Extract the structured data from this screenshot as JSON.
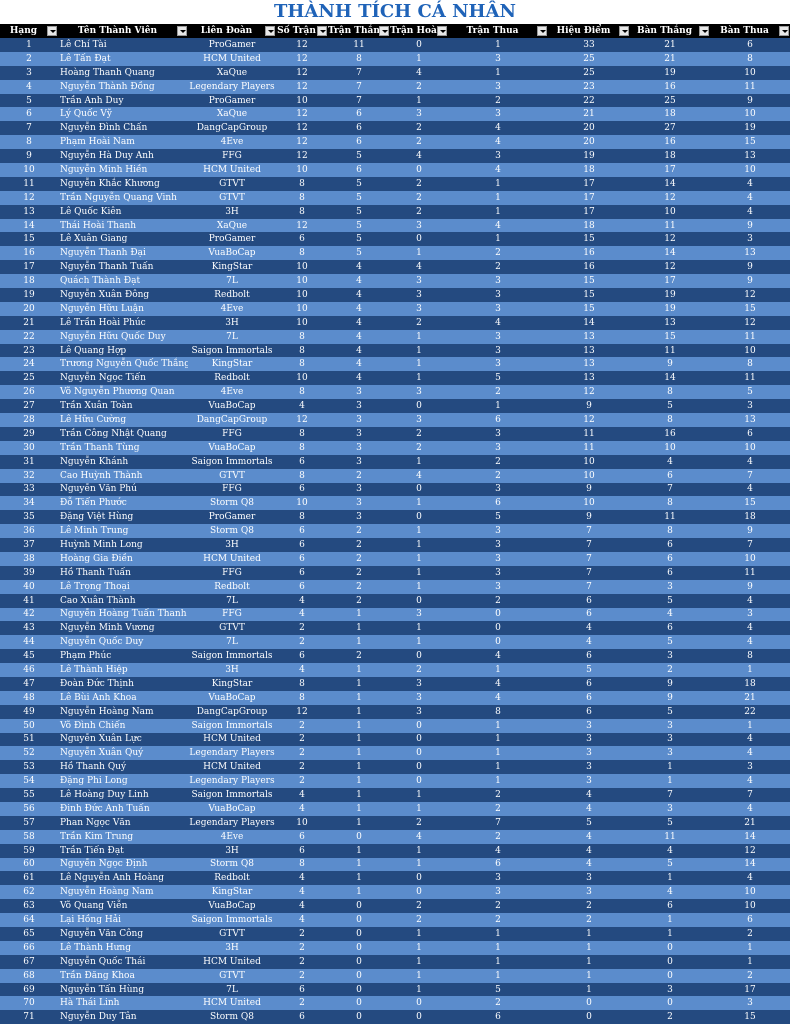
{
  "title": "THÀNH TÍCH CÁ NHÂN",
  "headers": [
    "Hạng",
    "Tên Thành Viên",
    "Liên Đoàn",
    "Số Trận",
    "Trận Thắng",
    "Trận Hoà",
    "Trận Thua",
    "Hiệu Điểm",
    "Bàn Thắng",
    "Bàn Thua"
  ],
  "rows": [
    [
      "1",
      "Lê Chí Tài",
      "ProGamer",
      "12",
      "11",
      "0",
      "1",
      "33",
      "21",
      "6"
    ],
    [
      "2",
      "Lê Tấn Đạt",
      "HCM United",
      "12",
      "8",
      "1",
      "3",
      "25",
      "21",
      "8"
    ],
    [
      "3",
      "Hoàng Thanh Quang",
      "XaQue",
      "12",
      "7",
      "4",
      "1",
      "25",
      "19",
      "10"
    ],
    [
      "4",
      "Nguyễn Thành Đồng",
      "Legendary Players",
      "12",
      "7",
      "2",
      "3",
      "23",
      "16",
      "11"
    ],
    [
      "5",
      "Trần Anh Duy",
      "ProGamer",
      "10",
      "7",
      "1",
      "2",
      "22",
      "25",
      "9"
    ],
    [
      "6",
      "Lý Quốc Vỹ",
      "XaQue",
      "12",
      "6",
      "3",
      "3",
      "21",
      "18",
      "10"
    ],
    [
      "7",
      "Nguyễn Đình Chấn",
      "DangCapGroup",
      "12",
      "6",
      "2",
      "4",
      "20",
      "27",
      "19"
    ],
    [
      "8",
      "Phạm Hoài Nam",
      "4Eve",
      "12",
      "6",
      "2",
      "4",
      "20",
      "16",
      "15"
    ],
    [
      "9",
      "Nguyễn Hà Duy Anh",
      "FFG",
      "12",
      "5",
      "4",
      "3",
      "19",
      "18",
      "13"
    ],
    [
      "10",
      "Nguyễn Minh Hiền",
      "HCM United",
      "10",
      "6",
      "0",
      "4",
      "18",
      "17",
      "10"
    ],
    [
      "11",
      "Nguyễn Khắc Khương",
      "GTVT",
      "8",
      "5",
      "2",
      "1",
      "17",
      "14",
      "4"
    ],
    [
      "12",
      "Trần Nguyễn Quang Vinh",
      "GTVT",
      "8",
      "5",
      "2",
      "1",
      "17",
      "12",
      "4"
    ],
    [
      "13",
      "Lê Quốc Kiên",
      "3H",
      "8",
      "5",
      "2",
      "1",
      "17",
      "10",
      "4"
    ],
    [
      "14",
      "Thái Hoài Thanh",
      "XaQue",
      "12",
      "5",
      "3",
      "4",
      "18",
      "11",
      "9"
    ],
    [
      "15",
      "Lê Xuân Giang",
      "ProGamer",
      "6",
      "5",
      "0",
      "1",
      "15",
      "12",
      "3"
    ],
    [
      "16",
      "Nguyễn Thanh Đại",
      "VuaBoCap",
      "8",
      "5",
      "1",
      "2",
      "16",
      "14",
      "13"
    ],
    [
      "17",
      "Nguyễn Thanh Tuấn",
      "KingStar",
      "10",
      "4",
      "4",
      "2",
      "16",
      "12",
      "9"
    ],
    [
      "18",
      "Quách Thành Đạt",
      "7L",
      "10",
      "4",
      "3",
      "3",
      "15",
      "17",
      "9"
    ],
    [
      "19",
      "Nguyễn Xuân Đông",
      "Redbolt",
      "10",
      "4",
      "3",
      "3",
      "15",
      "19",
      "12"
    ],
    [
      "20",
      "Nguyễn Hữu Luận",
      "4Eve",
      "10",
      "4",
      "3",
      "3",
      "15",
      "19",
      "15"
    ],
    [
      "21",
      "Lê Trần Hoài Phúc",
      "3H",
      "10",
      "4",
      "2",
      "4",
      "14",
      "13",
      "12"
    ],
    [
      "22",
      "Nguyễn Hữu Quốc Duy",
      "7L",
      "8",
      "4",
      "1",
      "3",
      "13",
      "15",
      "11"
    ],
    [
      "23",
      "Lê Quang Hợp",
      "Saigon Immortals",
      "8",
      "4",
      "1",
      "3",
      "13",
      "11",
      "10"
    ],
    [
      "24",
      "Trương Nguyễn Quốc Thắng",
      "KingStar",
      "8",
      "4",
      "1",
      "3",
      "13",
      "9",
      "8"
    ],
    [
      "25",
      "Nguyễn Ngọc Tiến",
      "Redbolt",
      "10",
      "4",
      "1",
      "5",
      "13",
      "14",
      "11"
    ],
    [
      "26",
      "Võ Nguyễn Phương Quan",
      "4Eve",
      "8",
      "3",
      "3",
      "2",
      "12",
      "8",
      "5"
    ],
    [
      "27",
      "Trần Xuân Toàn",
      "VuaBoCap",
      "4",
      "3",
      "0",
      "1",
      "9",
      "5",
      "3"
    ],
    [
      "28",
      "Lê Hữu Cường",
      "DangCapGroup",
      "12",
      "3",
      "3",
      "6",
      "12",
      "8",
      "13"
    ],
    [
      "29",
      "Trần Công Nhật Quang",
      "FFG",
      "8",
      "3",
      "2",
      "3",
      "11",
      "16",
      "6"
    ],
    [
      "30",
      "Trần Thanh Tùng",
      "VuaBoCap",
      "8",
      "3",
      "2",
      "3",
      "11",
      "10",
      "10"
    ],
    [
      "31",
      "Nguyễn Khánh",
      "Saigon Immortals",
      "6",
      "3",
      "1",
      "2",
      "10",
      "4",
      "4"
    ],
    [
      "32",
      "Cao Huỳnh Thành",
      "GTVT",
      "8",
      "2",
      "4",
      "2",
      "10",
      "6",
      "7"
    ],
    [
      "33",
      "Nguyễn Văn Phú",
      "FFG",
      "6",
      "3",
      "0",
      "3",
      "9",
      "7",
      "4"
    ],
    [
      "34",
      "Đỗ Tiến Phước",
      "Storm Q8",
      "10",
      "3",
      "1",
      "6",
      "10",
      "8",
      "15"
    ],
    [
      "35",
      "Đặng Việt Hùng",
      "ProGamer",
      "8",
      "3",
      "0",
      "5",
      "9",
      "11",
      "18"
    ],
    [
      "36",
      "Lê Minh Trung",
      "Storm Q8",
      "6",
      "2",
      "1",
      "3",
      "7",
      "8",
      "9"
    ],
    [
      "37",
      "Huỳnh Minh Long",
      "3H",
      "6",
      "2",
      "1",
      "3",
      "7",
      "6",
      "7"
    ],
    [
      "38",
      "Hoàng Gia Điền",
      "HCM United",
      "6",
      "2",
      "1",
      "3",
      "7",
      "6",
      "10"
    ],
    [
      "39",
      "Hồ Thanh Tuấn",
      "FFG",
      "6",
      "2",
      "1",
      "3",
      "7",
      "6",
      "11"
    ],
    [
      "40",
      "Lê Trọng Thoại",
      "Redbolt",
      "6",
      "2",
      "1",
      "3",
      "7",
      "3",
      "9"
    ],
    [
      "41",
      "Cao Xuân Thành",
      "7L",
      "4",
      "2",
      "0",
      "2",
      "6",
      "5",
      "4"
    ],
    [
      "42",
      "Nguyễn Hoàng Tuấn Thanh",
      "FFG",
      "4",
      "1",
      "3",
      "0",
      "6",
      "4",
      "3"
    ],
    [
      "43",
      "Nguyễn Minh Vương",
      "GTVT",
      "2",
      "1",
      "1",
      "0",
      "4",
      "6",
      "4"
    ],
    [
      "44",
      "Nguyễn Quốc Duy",
      "7L",
      "2",
      "1",
      "1",
      "0",
      "4",
      "5",
      "4"
    ],
    [
      "45",
      "Phạm Phúc",
      "Saigon Immortals",
      "6",
      "2",
      "0",
      "4",
      "6",
      "3",
      "8"
    ],
    [
      "46",
      "Lê Thành Hiệp",
      "3H",
      "4",
      "1",
      "2",
      "1",
      "5",
      "2",
      "1"
    ],
    [
      "47",
      "Đoàn Đức Thịnh",
      "KingStar",
      "8",
      "1",
      "3",
      "4",
      "6",
      "9",
      "18"
    ],
    [
      "48",
      "Lê Bùi Anh Khoa",
      "VuaBoCap",
      "8",
      "1",
      "3",
      "4",
      "6",
      "9",
      "21"
    ],
    [
      "49",
      "Nguyễn Hoàng Nam",
      "DangCapGroup",
      "12",
      "1",
      "3",
      "8",
      "6",
      "5",
      "22"
    ],
    [
      "50",
      "Võ Đình Chiến",
      "Saigon Immortals",
      "2",
      "1",
      "0",
      "1",
      "3",
      "3",
      "1"
    ],
    [
      "51",
      "Nguyễn Xuân Lực",
      "HCM United",
      "2",
      "1",
      "0",
      "1",
      "3",
      "3",
      "4"
    ],
    [
      "52",
      "Nguyễn Xuân Quý",
      "Legendary Players",
      "2",
      "1",
      "0",
      "1",
      "3",
      "3",
      "4"
    ],
    [
      "53",
      "Hồ Thanh Quý",
      "HCM United",
      "2",
      "1",
      "0",
      "1",
      "3",
      "1",
      "3"
    ],
    [
      "54",
      "Đặng Phi Long",
      "Legendary Players",
      "2",
      "1",
      "0",
      "1",
      "3",
      "1",
      "4"
    ],
    [
      "55",
      "Lê Hoàng Duy Linh",
      "Saigon Immortals",
      "4",
      "1",
      "1",
      "2",
      "4",
      "7",
      "7"
    ],
    [
      "56",
      "Đinh Đức Anh Tuấn",
      "VuaBoCap",
      "4",
      "1",
      "1",
      "2",
      "4",
      "3",
      "4"
    ],
    [
      "57",
      "Phan Ngọc Văn",
      "Legendary Players",
      "10",
      "1",
      "2",
      "7",
      "5",
      "5",
      "21"
    ],
    [
      "58",
      "Trần Kim Trung",
      "4Eve",
      "6",
      "0",
      "4",
      "2",
      "4",
      "11",
      "14"
    ],
    [
      "59",
      "Trần Tiến Đạt",
      "3H",
      "6",
      "1",
      "1",
      "4",
      "4",
      "4",
      "12"
    ],
    [
      "60",
      "Nguyễn Ngọc Định",
      "Storm Q8",
      "8",
      "1",
      "1",
      "6",
      "4",
      "5",
      "14"
    ],
    [
      "61",
      "Lê Nguyễn Anh Hoàng",
      "Redbolt",
      "4",
      "1",
      "0",
      "3",
      "3",
      "1",
      "4"
    ],
    [
      "62",
      "Nguyễn Hoàng Nam",
      "KingStar",
      "4",
      "1",
      "0",
      "3",
      "3",
      "4",
      "10"
    ],
    [
      "63",
      "Võ Quang Viễn",
      "VuaBoCap",
      "4",
      "0",
      "2",
      "2",
      "2",
      "6",
      "10"
    ],
    [
      "64",
      "Lại Hồng Hải",
      "Saigon Immortals",
      "4",
      "0",
      "2",
      "2",
      "2",
      "1",
      "6"
    ],
    [
      "65",
      "Nguyễn Văn Công",
      "GTVT",
      "2",
      "0",
      "1",
      "1",
      "1",
      "1",
      "2"
    ],
    [
      "66",
      "Lê Thành Hưng",
      "3H",
      "2",
      "0",
      "1",
      "1",
      "1",
      "0",
      "1"
    ],
    [
      "67",
      "Nguyễn Quốc Thái",
      "HCM United",
      "2",
      "0",
      "1",
      "1",
      "1",
      "0",
      "1"
    ],
    [
      "68",
      "Trần Đăng Khoa",
      "GTVT",
      "2",
      "0",
      "1",
      "1",
      "1",
      "0",
      "2"
    ],
    [
      "69",
      "Nguyễn Tấn Hùng",
      "7L",
      "6",
      "0",
      "1",
      "5",
      "1",
      "3",
      "17"
    ],
    [
      "70",
      "Hà Thái Linh",
      "HCM United",
      "2",
      "0",
      "0",
      "2",
      "0",
      "0",
      "3"
    ],
    [
      "71",
      "Nguyễn Duy Tân",
      "Storm Q8",
      "6",
      "0",
      "0",
      "6",
      "0",
      "2",
      "15"
    ]
  ]
}
